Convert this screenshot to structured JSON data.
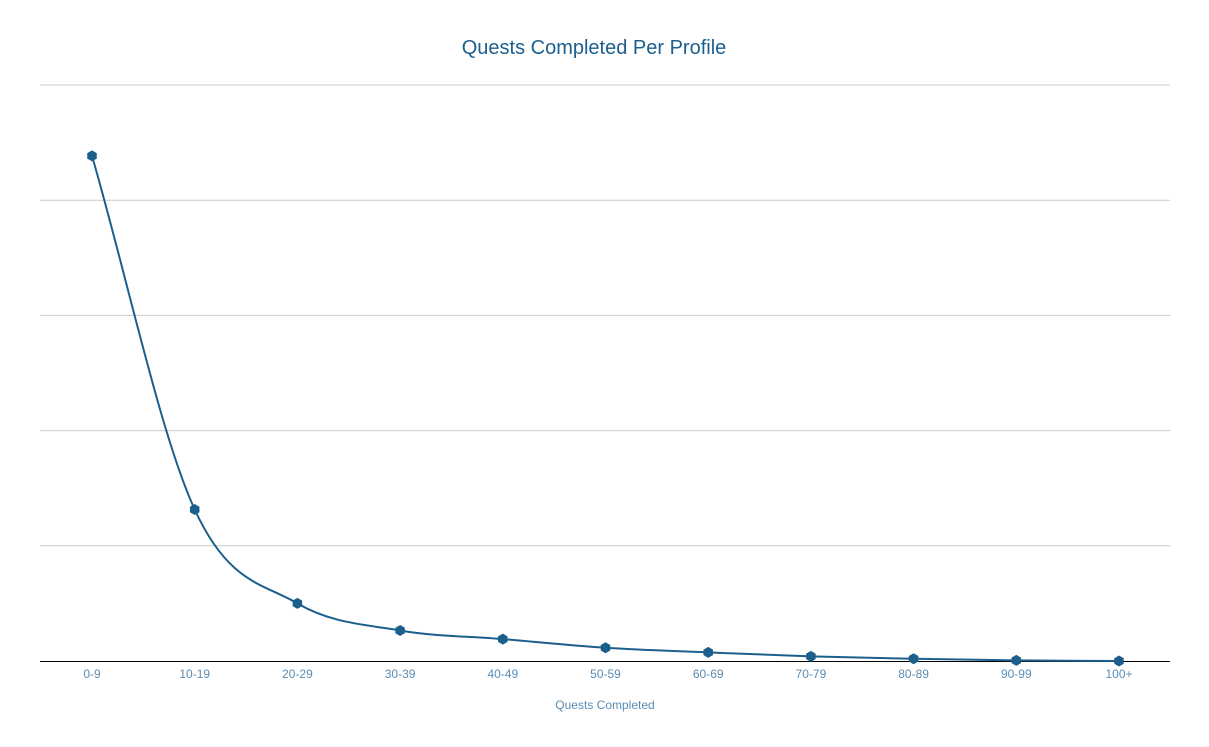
{
  "colors": {
    "series": "#1c5f8d",
    "title": "#1c5f8d",
    "tick": "#5b8db3",
    "grid": "#cccccc",
    "axis": "#000000"
  },
  "chart_data": {
    "type": "line",
    "title": "Quests Completed Per Profile",
    "xlabel": "Quests Completed",
    "ylabel": "",
    "categories": [
      "0-9",
      "10-19",
      "20-29",
      "30-39",
      "40-49",
      "50-59",
      "60-69",
      "70-79",
      "80-89",
      "90-99",
      "100+"
    ],
    "series": [
      {
        "values": [
          87.7,
          26.3,
          10.0,
          5.3,
          3.8,
          2.3,
          1.5,
          0.8,
          0.4,
          0.1,
          0.0
        ]
      }
    ],
    "ylim": [
      0,
      100
    ],
    "grid_lines": [
      0,
      20,
      40,
      60,
      80,
      100
    ],
    "y_tick_labels_shown": false,
    "smooth": true,
    "marker": "hexagon",
    "grid": true,
    "legend": "none"
  }
}
